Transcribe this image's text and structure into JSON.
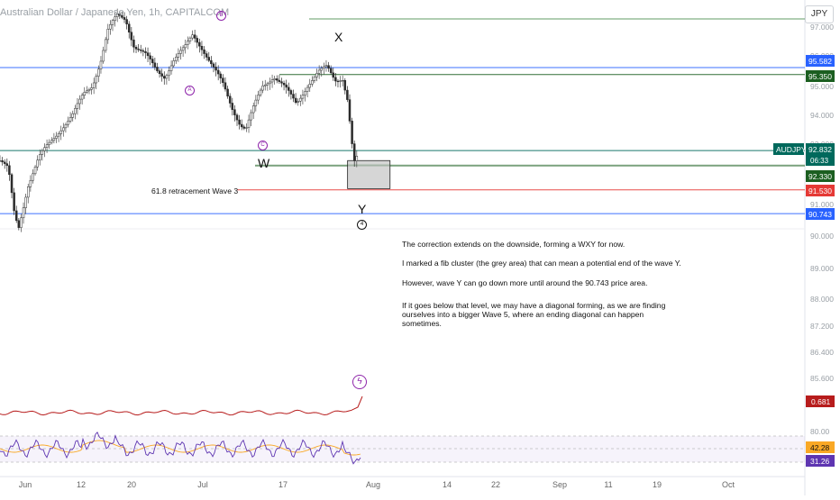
{
  "header": {
    "title": "Australian Dollar / Japanese Yen, 1h, CAPITALCOM",
    "currency_button": "JPY"
  },
  "chart_data": {
    "type": "candlestick",
    "symbol": "AUDJPY",
    "yticks": [
      "97.000",
      "96.000",
      "95.000",
      "94.000",
      "93.000",
      "92.000",
      "91.000",
      "90.000",
      "89.000",
      "88.000",
      "87.200",
      "86.400",
      "85.600",
      "80.00"
    ],
    "xticks": [
      "Jun",
      "12",
      "20",
      "Jul",
      "17",
      "Aug",
      "14",
      "22",
      "Sep",
      "11",
      "19",
      "Oct"
    ],
    "price_series": [
      {
        "t": 0,
        "p": 92.5
      },
      {
        "t": 1.5,
        "p": 92.2
      },
      {
        "t": 2.5,
        "p": 90.8
      },
      {
        "t": 3.3,
        "p": 90.25
      },
      {
        "t": 5,
        "p": 91.7
      },
      {
        "t": 7,
        "p": 92.6
      },
      {
        "t": 9,
        "p": 93.1
      },
      {
        "t": 11,
        "p": 93.6
      },
      {
        "t": 13,
        "p": 94.0
      },
      {
        "t": 15,
        "p": 94.7
      },
      {
        "t": 16.5,
        "p": 95.0
      },
      {
        "t": 18,
        "p": 95.8
      },
      {
        "t": 19.3,
        "p": 96.8
      },
      {
        "t": 21,
        "p": 97.3
      },
      {
        "t": 22.5,
        "p": 97.2
      },
      {
        "t": 24,
        "p": 96.3
      },
      {
        "t": 26,
        "p": 96.0
      },
      {
        "t": 28,
        "p": 95.5
      },
      {
        "t": 29.5,
        "p": 95.3
      },
      {
        "t": 31,
        "p": 95.8
      },
      {
        "t": 33,
        "p": 96.2
      },
      {
        "t": 34.5,
        "p": 96.7
      },
      {
        "t": 36,
        "p": 96.3
      },
      {
        "t": 38,
        "p": 95.6
      },
      {
        "t": 40,
        "p": 95.0
      },
      {
        "t": 41.5,
        "p": 94.3
      },
      {
        "t": 43,
        "p": 93.7
      },
      {
        "t": 44,
        "p": 93.5
      },
      {
        "t": 45.5,
        "p": 94.3
      },
      {
        "t": 47,
        "p": 95.0
      },
      {
        "t": 49,
        "p": 95.3
      },
      {
        "t": 51,
        "p": 94.9
      },
      {
        "t": 53,
        "p": 94.4
      },
      {
        "t": 55,
        "p": 95.0
      },
      {
        "t": 57,
        "p": 95.4
      },
      {
        "t": 58.5,
        "p": 95.6
      },
      {
        "t": 60,
        "p": 95.2
      },
      {
        "t": 61.3,
        "p": 95.25
      },
      {
        "t": 62.2,
        "p": 94.5
      },
      {
        "t": 63,
        "p": 93.0
      },
      {
        "t": 63.5,
        "p": 92.3
      },
      {
        "t": 64.2,
        "p": 92.83
      }
    ],
    "horizontal_levels": [
      {
        "value": 95.582,
        "label": "95.582",
        "color": "#2962ff",
        "fill": true
      },
      {
        "value": 95.35,
        "label": "95.350",
        "color": "#1b5e20",
        "fill": true
      },
      {
        "value": 92.832,
        "label": "92.832",
        "color": "#00695c",
        "fill": true,
        "symbol": "AUDJPY",
        "countdown": "06:33"
      },
      {
        "value": 92.33,
        "label": "92.330",
        "color": "#1b5e20",
        "fill": true
      },
      {
        "value": 91.53,
        "label": "91.530",
        "color": "#e53935",
        "fill": true
      },
      {
        "value": 90.743,
        "label": "90.743",
        "color": "#2962ff",
        "fill": true
      }
    ],
    "fib_box": {
      "t_start": 62.2,
      "t_end": 69.8,
      "top": 92.5,
      "bottom": 91.57,
      "color": "#c8c8c8"
    },
    "fib_label": "61.8 retracement Wave 3",
    "wave_labels": [
      {
        "text": "B",
        "t": 39.2,
        "p": 97.35,
        "style": "circle",
        "color": "#8e24aa"
      },
      {
        "text": "A",
        "t": 33.5,
        "p": 95.18,
        "style": "circle",
        "color": "#8e24aa"
      },
      {
        "text": "C",
        "t": 46.5,
        "p": 93.12,
        "style": "circle",
        "color": "#8e24aa"
      },
      {
        "text": "X",
        "t": 60.0,
        "p": 96.72,
        "style": "plain"
      },
      {
        "text": "W",
        "t": 46.5,
        "p": 92.55,
        "style": "plain"
      },
      {
        "text": "Y",
        "t": 64.2,
        "p": 91.0,
        "style": "plain"
      },
      {
        "text": "4",
        "t": 64.2,
        "p": 90.45,
        "style": "circle",
        "color": "#111111"
      }
    ],
    "indicator": {
      "value_label": "0.681",
      "color": "#b71c1c"
    },
    "rsi": {
      "label_1": "42.28",
      "label_2": "31.26",
      "color_rsi": "#5e35b1",
      "color_ma": "#f9a825"
    },
    "notes": [
      "The correction extends on the downside, forming a WXY for now.",
      "I marked a fib cluster (the grey area) that can mean a potential end of the wave Y.",
      "However, wave Y can go down more until around the 90.743 price area.",
      "If it goes below that level, we may have a diagonal forming, as we are finding ourselves into a bigger Wave 5, where an ending diagonal can happen sometimes."
    ]
  }
}
